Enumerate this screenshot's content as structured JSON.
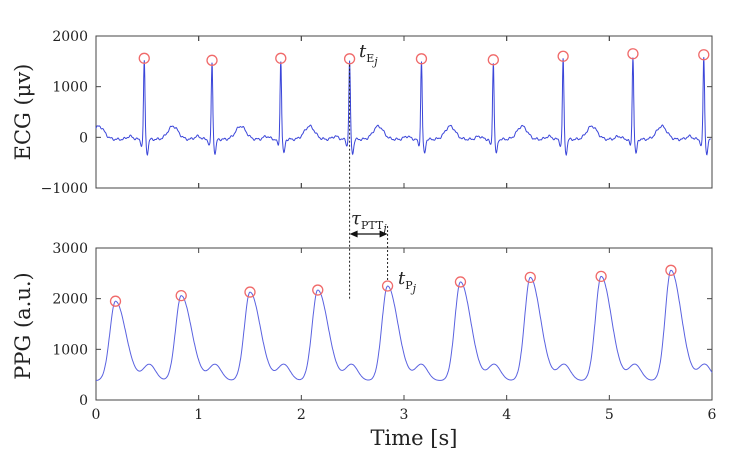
{
  "chart_data": [
    {
      "type": "line",
      "ylabel": "ECG (μv)",
      "xlim": [
        0,
        6
      ],
      "ylim": [
        -1000,
        2000
      ],
      "yticks": [
        -1000,
        0,
        1000,
        2000
      ],
      "ytick_labels": [
        "−1000",
        "0",
        "1000",
        "2000"
      ],
      "xtick_labels": [
        "",
        "",
        "",
        "",
        "",
        "",
        ""
      ],
      "grid": false,
      "color": "#3b46d9",
      "marker_color": "#f06a6a",
      "r_peaks": {
        "x": [
          0.47,
          1.13,
          1.8,
          2.47,
          3.17,
          3.87,
          4.55,
          5.23,
          5.92
        ],
        "y": [
          1560,
          1520,
          1560,
          1550,
          1550,
          1530,
          1600,
          1650,
          1630
        ]
      },
      "annotation": {
        "label": "t",
        "subscript": "E",
        "subsub": "j",
        "x": 2.47
      }
    },
    {
      "type": "line",
      "ylabel": "PPG (a.u.)",
      "xlabel": "Time [s]",
      "xlim": [
        0,
        6
      ],
      "ylim": [
        0,
        3000
      ],
      "yticks": [
        0,
        1000,
        2000,
        3000
      ],
      "ytick_labels": [
        "0",
        "1000",
        "2000",
        "3000"
      ],
      "xticks": [
        0,
        1,
        2,
        3,
        4,
        5,
        6
      ],
      "xtick_labels": [
        "0",
        "1",
        "2",
        "3",
        "4",
        "5",
        "6"
      ],
      "grid": false,
      "color": "#3b46d9",
      "marker_color": "#f06a6a",
      "systolic_peaks": {
        "x": [
          0.19,
          0.83,
          1.5,
          2.16,
          2.84,
          3.55,
          4.23,
          4.92,
          5.6
        ],
        "y": [
          1950,
          2060,
          2130,
          2170,
          2250,
          2330,
          2420,
          2440,
          2560
        ]
      },
      "annotation": {
        "label": "t",
        "subscript": "P",
        "subsub": "j",
        "x": 2.84
      },
      "ptt_annotation": {
        "label": "τ",
        "subscript": "PTT",
        "subsub": "j",
        "x_start": 2.47,
        "x_end": 2.84
      }
    }
  ]
}
